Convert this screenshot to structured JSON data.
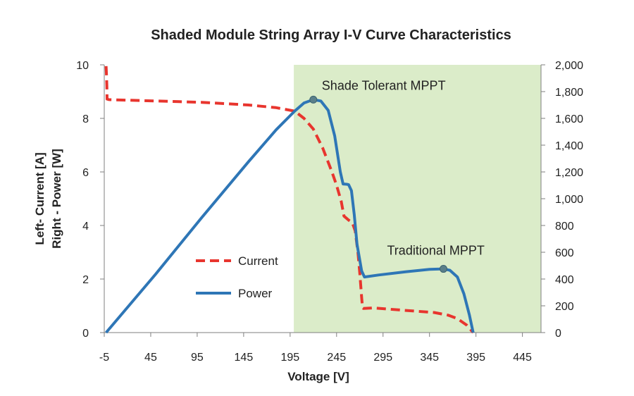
{
  "chart_data": {
    "type": "line",
    "title": "Shaded Module String Array I-V Curve Characteristics",
    "xlabel": "Voltage [V]",
    "ylabel_line1": "Left- Current [A]",
    "ylabel_line2": "Right - Power [W]",
    "xlim": [
      -5,
      465
    ],
    "ylim_left": [
      0,
      10
    ],
    "ylim_right": [
      0,
      2000
    ],
    "x_ticks": [
      -5,
      45,
      95,
      145,
      195,
      245,
      295,
      345,
      395,
      445
    ],
    "x_tick_labels": [
      "-5",
      "45",
      "95",
      "145",
      "195",
      "245",
      "295",
      "345",
      "395",
      "445"
    ],
    "y_left_ticks": [
      0,
      2,
      4,
      6,
      8,
      10
    ],
    "y_left_tick_labels": [
      "0",
      "2",
      "4",
      "6",
      "8",
      "10"
    ],
    "y_right_ticks": [
      0,
      200,
      400,
      600,
      800,
      1000,
      1200,
      1400,
      1600,
      1800,
      2000
    ],
    "y_right_tick_labels": [
      "0",
      "200",
      "400",
      "600",
      "800",
      "1,000",
      "1,200",
      "1,400",
      "1,600",
      "1,800",
      "2,000"
    ],
    "grid": false,
    "legend_position": "lower-left",
    "shaded_region": {
      "x_start": 199,
      "x_end": 465,
      "color": "#dbecc9"
    },
    "series": [
      {
        "name": "Current",
        "axis": "left",
        "style": "dashed",
        "color": "#e8352e",
        "points": [
          [
            -3,
            9.95
          ],
          [
            -2.6,
            9.6
          ],
          [
            -2.2,
            9.2
          ],
          [
            -2,
            8.72
          ],
          [
            0,
            8.7
          ],
          [
            50,
            8.65
          ],
          [
            100,
            8.6
          ],
          [
            150,
            8.5
          ],
          [
            180,
            8.4
          ],
          [
            200,
            8.27
          ],
          [
            210,
            8.0
          ],
          [
            220,
            7.6
          ],
          [
            230,
            6.9
          ],
          [
            240,
            6.0
          ],
          [
            245,
            5.5
          ],
          [
            250,
            4.9
          ],
          [
            253,
            4.35
          ],
          [
            258,
            4.2
          ],
          [
            262,
            4.1
          ],
          [
            265,
            3.8
          ],
          [
            268,
            3.0
          ],
          [
            270,
            2.2
          ],
          [
            272,
            1.3
          ],
          [
            273,
            0.92
          ],
          [
            274,
            0.9
          ],
          [
            284,
            0.92
          ],
          [
            300,
            0.88
          ],
          [
            330,
            0.8
          ],
          [
            350,
            0.75
          ],
          [
            365,
            0.65
          ],
          [
            375,
            0.52
          ],
          [
            385,
            0.28
          ],
          [
            392,
            0
          ]
        ]
      },
      {
        "name": "Power",
        "axis": "right",
        "style": "solid",
        "color": "#2e76b6",
        "points": [
          [
            -3,
            0
          ],
          [
            50,
            434
          ],
          [
            100,
            860
          ],
          [
            150,
            1275
          ],
          [
            180,
            1515
          ],
          [
            200,
            1655
          ],
          [
            210,
            1715
          ],
          [
            220,
            1740
          ],
          [
            228,
            1730
          ],
          [
            236,
            1660
          ],
          [
            243,
            1470
          ],
          [
            249,
            1200
          ],
          [
            252,
            1110
          ],
          [
            256,
            1108
          ],
          [
            258,
            1105
          ],
          [
            261,
            1060
          ],
          [
            264,
            880
          ],
          [
            267,
            660
          ],
          [
            272,
            460
          ],
          [
            275,
            415
          ],
          [
            290,
            430
          ],
          [
            320,
            455
          ],
          [
            345,
            472
          ],
          [
            360,
            476
          ],
          [
            367,
            465
          ],
          [
            375,
            415
          ],
          [
            382,
            290
          ],
          [
            388,
            130
          ],
          [
            392,
            0
          ]
        ]
      }
    ],
    "markers": [
      {
        "x": 220,
        "y": 1740,
        "axis": "right",
        "label": "Shade Tolerant MPPT"
      },
      {
        "x": 360,
        "y": 476,
        "axis": "right",
        "label": "Traditional MPPT"
      }
    ]
  }
}
